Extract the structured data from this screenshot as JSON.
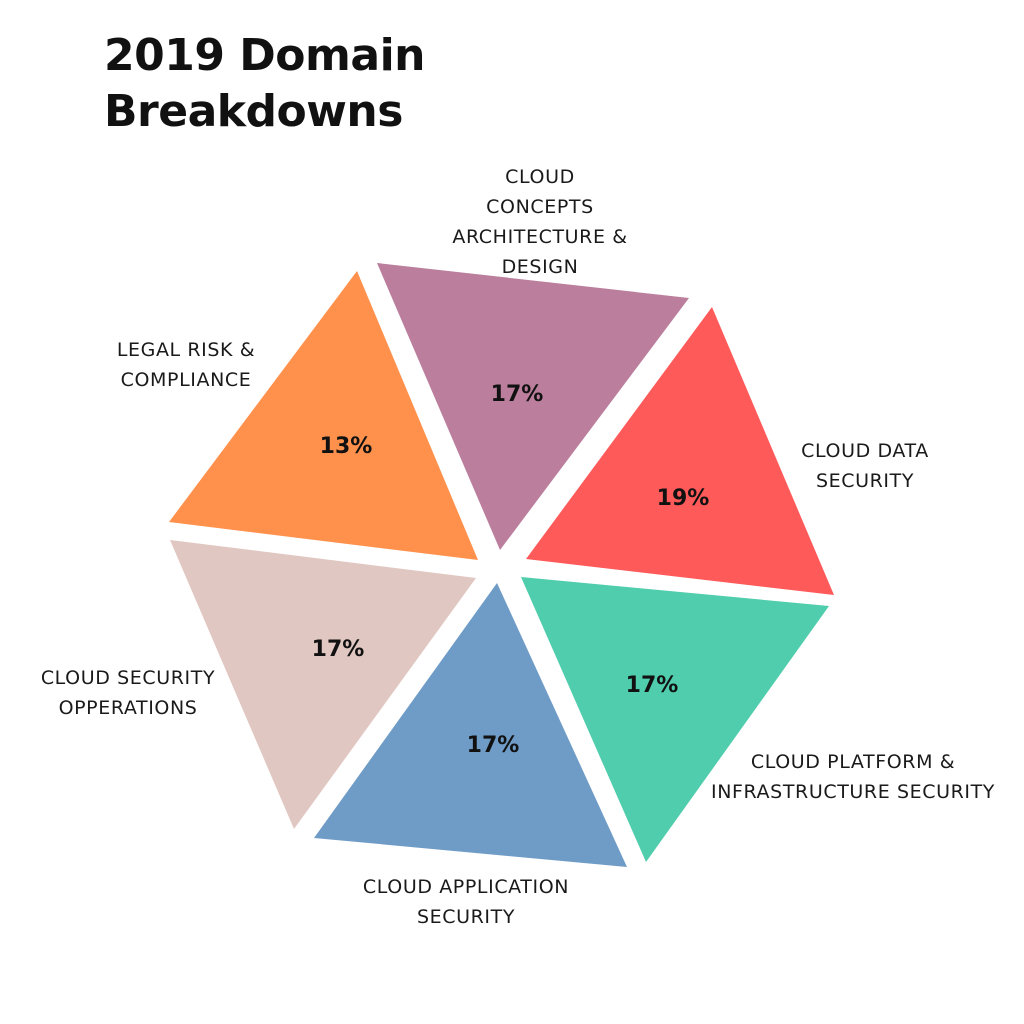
{
  "chart_data": {
    "type": "pie",
    "title": "2019 Domain Breakdowns",
    "title_lines": [
      "2019 Domain",
      "Breakdowns"
    ],
    "slices": [
      {
        "name": "Cloud Concepts Architecture & Design",
        "label_lines": [
          "CLOUD",
          "CONCEPTS",
          "ARCHITECTURE &",
          "DESIGN"
        ],
        "value": 17,
        "value_label": "17%",
        "color": "#BB7E9C"
      },
      {
        "name": "Cloud Data Security",
        "label_lines": [
          "CLOUD DATA",
          "SECURITY"
        ],
        "value": 19,
        "value_label": "19%",
        "color": "#FF5A5A"
      },
      {
        "name": "Cloud Platform & Infrastructure Security",
        "label_lines": [
          "CLOUD PLATFORM &",
          "INFRASTRUCTURE SECURITY"
        ],
        "value": 17,
        "value_label": "17%",
        "color": "#4FCDAC"
      },
      {
        "name": "Cloud Application Security",
        "label_lines": [
          "CLOUD APPLICATION",
          "SECURITY"
        ],
        "value": 17,
        "value_label": "17%",
        "color": "#6F9CC7"
      },
      {
        "name": "Cloud Security Opperations",
        "label_lines": [
          "CLOUD SECURITY",
          "OPPERATIONS"
        ],
        "value": 17,
        "value_label": "17%",
        "color": "#E1C7C1"
      },
      {
        "name": "Legal Risk & Compliance",
        "label_lines": [
          "LEGAL RISK &",
          "COMPLIANCE"
        ],
        "value": 13,
        "value_label": "13%",
        "color": "#FF914D"
      }
    ]
  }
}
